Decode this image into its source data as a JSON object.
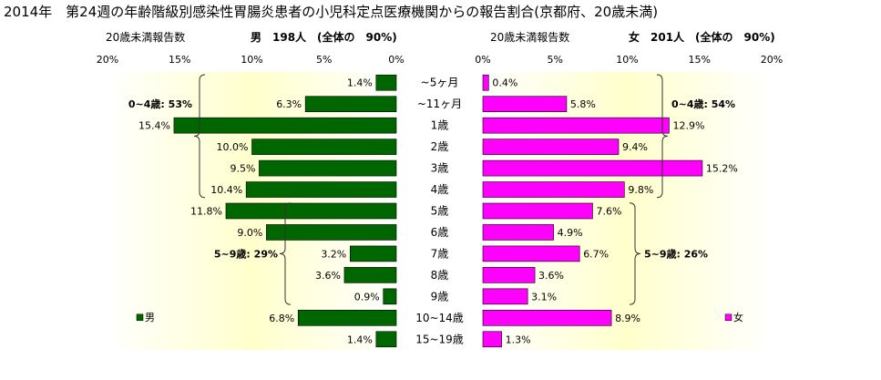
{
  "title": "2014年　第24週の年齢階級別感染性胃腸炎患者の小児科定点医療機関からの報告割合(京都府、20歳未満)",
  "colors": {
    "male": "#006600",
    "female": "#ff00ff",
    "plot_bg_center": "#ffffcc"
  },
  "chart_data": [
    {
      "type": "bar",
      "orientation": "horizontal",
      "direction": "right-to-left",
      "subtitle_left": "20歳未満報告数",
      "subtitle_right": "男　198人　(全体の　90%)",
      "xlim": [
        0,
        20
      ],
      "x_ticks": [
        "20%",
        "15%",
        "10%",
        "5%",
        "0%"
      ],
      "categories": [
        "~5ヶ月",
        "~11ヶ月",
        "1歳",
        "2歳",
        "3歳",
        "4歳",
        "5歳",
        "6歳",
        "7歳",
        "8歳",
        "9歳",
        "10~14歳",
        "15~19歳"
      ],
      "series": [
        {
          "name": "男",
          "values": [
            1.4,
            6.3,
            15.4,
            10.0,
            9.5,
            10.4,
            11.8,
            9.0,
            3.2,
            3.6,
            0.9,
            6.8,
            1.4
          ],
          "labels": [
            "1.4%",
            "6.3%",
            "15.4%",
            "10.0%",
            "9.5%",
            "10.4%",
            "11.8%",
            "9.0%",
            "3.2%",
            "3.6%",
            "0.9%",
            "6.8%",
            "1.4%"
          ]
        }
      ],
      "annotations": [
        {
          "text": "0~4歳: 53%",
          "range": [
            0,
            5
          ]
        },
        {
          "text": "5~9歳: 29%",
          "range": [
            6,
            10
          ]
        }
      ],
      "legend": "男",
      "legend_position": "bottom-left"
    },
    {
      "type": "bar",
      "orientation": "horizontal",
      "direction": "left-to-right",
      "subtitle_left": "20歳未満報告数",
      "subtitle_right": "女　201人　(全体の　90%)",
      "xlim": [
        0,
        20
      ],
      "x_ticks": [
        "0%",
        "5%",
        "10%",
        "15%",
        "20%"
      ],
      "categories": [
        "~5ヶ月",
        "~11ヶ月",
        "1歳",
        "2歳",
        "3歳",
        "4歳",
        "5歳",
        "6歳",
        "7歳",
        "8歳",
        "9歳",
        "10~14歳",
        "15~19歳"
      ],
      "series": [
        {
          "name": "女",
          "values": [
            0.4,
            5.8,
            12.9,
            9.4,
            15.2,
            9.8,
            7.6,
            4.9,
            6.7,
            3.6,
            3.1,
            8.9,
            1.3
          ],
          "labels": [
            "0.4%",
            "5.8%",
            "12.9%",
            "9.4%",
            "15.2%",
            "9.8%",
            "7.6%",
            "4.9%",
            "6.7%",
            "3.6%",
            "3.1%",
            "8.9%",
            "1.3%"
          ]
        }
      ],
      "annotations": [
        {
          "text": "0~4歳: 54%",
          "range": [
            0,
            5
          ]
        },
        {
          "text": "5~9歳: 26%",
          "range": [
            6,
            10
          ]
        }
      ],
      "legend": "女",
      "legend_position": "bottom-left"
    }
  ]
}
